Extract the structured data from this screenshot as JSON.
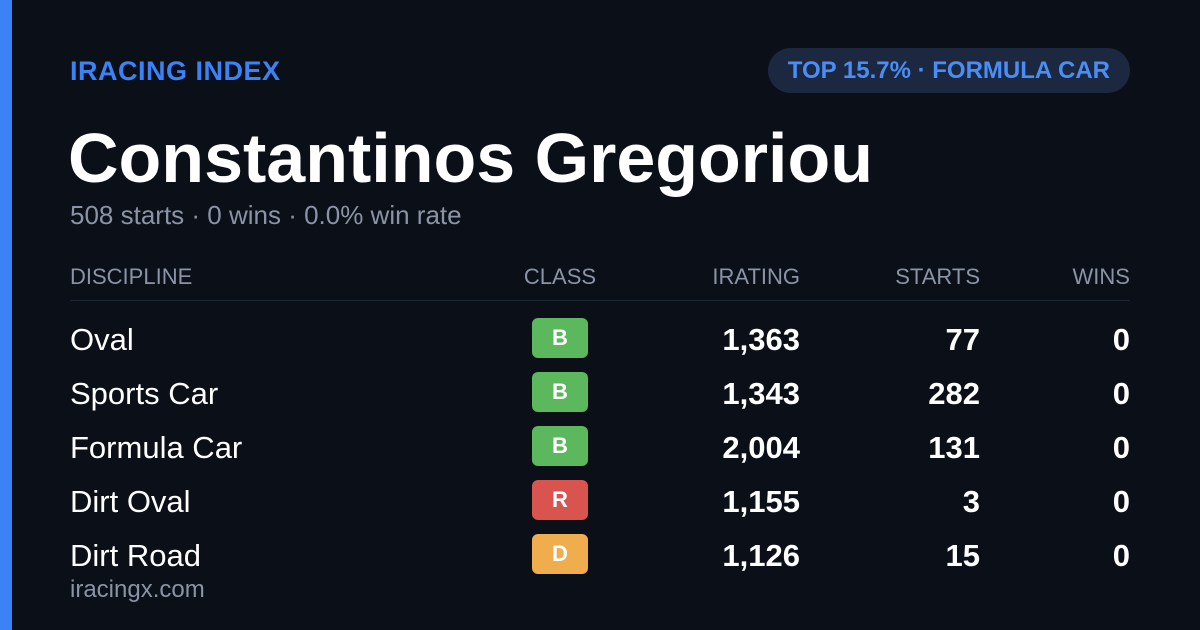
{
  "brand": "IRACING INDEX",
  "badge": "TOP 15.7% · FORMULA CAR",
  "name": "Constantinos Gregoriou",
  "summary": "508 starts · 0 wins · 0.0% win rate",
  "table": {
    "headers": [
      "DISCIPLINE",
      "CLASS",
      "IRATING",
      "STARTS",
      "WINS"
    ],
    "rows": [
      {
        "discipline": "Oval",
        "class": "B",
        "class_color": "#5cb85c",
        "irating": "1,363",
        "starts": "77",
        "wins": "0"
      },
      {
        "discipline": "Sports Car",
        "class": "B",
        "class_color": "#5cb85c",
        "irating": "1,343",
        "starts": "282",
        "wins": "0"
      },
      {
        "discipline": "Formula Car",
        "class": "B",
        "class_color": "#5cb85c",
        "irating": "2,004",
        "starts": "131",
        "wins": "0"
      },
      {
        "discipline": "Dirt Oval",
        "class": "R",
        "class_color": "#d9534f",
        "irating": "1,155",
        "starts": "3",
        "wins": "0"
      },
      {
        "discipline": "Dirt Road",
        "class": "D",
        "class_color": "#f0ad4e",
        "irating": "1,126",
        "starts": "15",
        "wins": "0"
      }
    ]
  },
  "footer": "iracingx.com"
}
